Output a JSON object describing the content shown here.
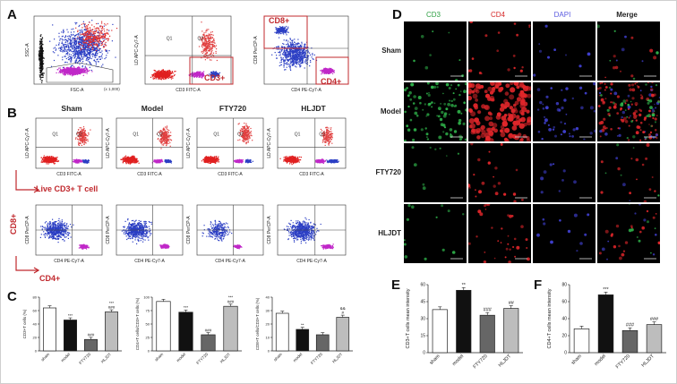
{
  "panels": {
    "A": "A",
    "B": "B",
    "C": "C",
    "D": "D",
    "E": "E",
    "F": "F"
  },
  "panelA": {
    "plot1": {
      "ylabel": "SSC-A",
      "xlabel": "FSC-A",
      "xunit": "(x 1,000)"
    },
    "plot2": {
      "ylabel": "LD APC-Cy7-A",
      "xlabel": "CD3 FITC-A",
      "q1": "Q1",
      "q2": "Q2",
      "gate": "CD3+"
    },
    "plot3": {
      "ylabel": "CD8 PerCP-A",
      "xlabel": "CD4 PE-Cy7-A",
      "gate_top": "CD8+",
      "gate_bottom": "CD4+"
    }
  },
  "panelB": {
    "groups": [
      "Sham",
      "Model",
      "FTY720",
      "HLJDT"
    ],
    "row1": {
      "ylabel": "LD APC-Cy7-A",
      "xlabel": "CD3 FITC-A",
      "q1": "Q1",
      "q2": "Q2"
    },
    "row2": {
      "ylabel": "CD8 PerCP-A",
      "xlabel": "CD4 PE-Cy7-A"
    },
    "live_label": "Live CD3+ T cell",
    "cd8_label": "CD8+",
    "cd4_label": "CD4+"
  },
  "chart_data": [
    {
      "type": "bar",
      "categories": [
        "sham",
        "model",
        "FTY720",
        "HLJDT"
      ],
      "values": [
        64,
        46,
        17,
        58
      ],
      "ylabel": "CD3+T cells (%)",
      "ylim": [
        0,
        80
      ],
      "annotations": [
        "",
        "***",
        "###",
        "***\n###"
      ]
    },
    {
      "type": "bar",
      "categories": [
        "sham",
        "model",
        "FTY720",
        "HLJDT"
      ],
      "values": [
        92,
        72,
        30,
        83
      ],
      "ylabel": "CD4+T cells/CD3+T cells (%)",
      "ylim": [
        0,
        100
      ],
      "annotations": [
        "",
        "***",
        "###",
        "***\n###"
      ]
    },
    {
      "type": "bar",
      "categories": [
        "sham",
        "model",
        "FTY720",
        "HLJDT"
      ],
      "values": [
        28,
        16,
        12,
        25
      ],
      "ylabel": "CD8+T cells/CD3+T cells (%)",
      "ylim": [
        0,
        40
      ],
      "annotations": [
        "",
        "**",
        "",
        "&&\n#"
      ]
    },
    {
      "type": "bar",
      "categories": [
        "sham",
        "model",
        "FTY720",
        "HLJDT"
      ],
      "values": [
        38,
        55,
        33,
        39
      ],
      "ylabel": "CD3+T cells mean intensity",
      "ylim": [
        0,
        60
      ],
      "annotations": [
        "",
        "**",
        "###",
        "##"
      ]
    },
    {
      "type": "bar",
      "categories": [
        "sham",
        "model",
        "FTY720",
        "HLJDT"
      ],
      "values": [
        28,
        68,
        26,
        33
      ],
      "ylabel": "CD4+T cells mean intensity",
      "ylim": [
        0,
        80
      ],
      "annotations": [
        "",
        "***",
        "###",
        "###"
      ]
    }
  ],
  "panelD": {
    "headers": [
      "CD3",
      "CD4",
      "DAPI",
      "Merge"
    ],
    "header_colors": [
      "#2ea043",
      "#d62828",
      "#5a5ae0",
      "#222222"
    ],
    "rows": [
      "Sham",
      "Model",
      "FTY720",
      "HLJDT"
    ]
  }
}
